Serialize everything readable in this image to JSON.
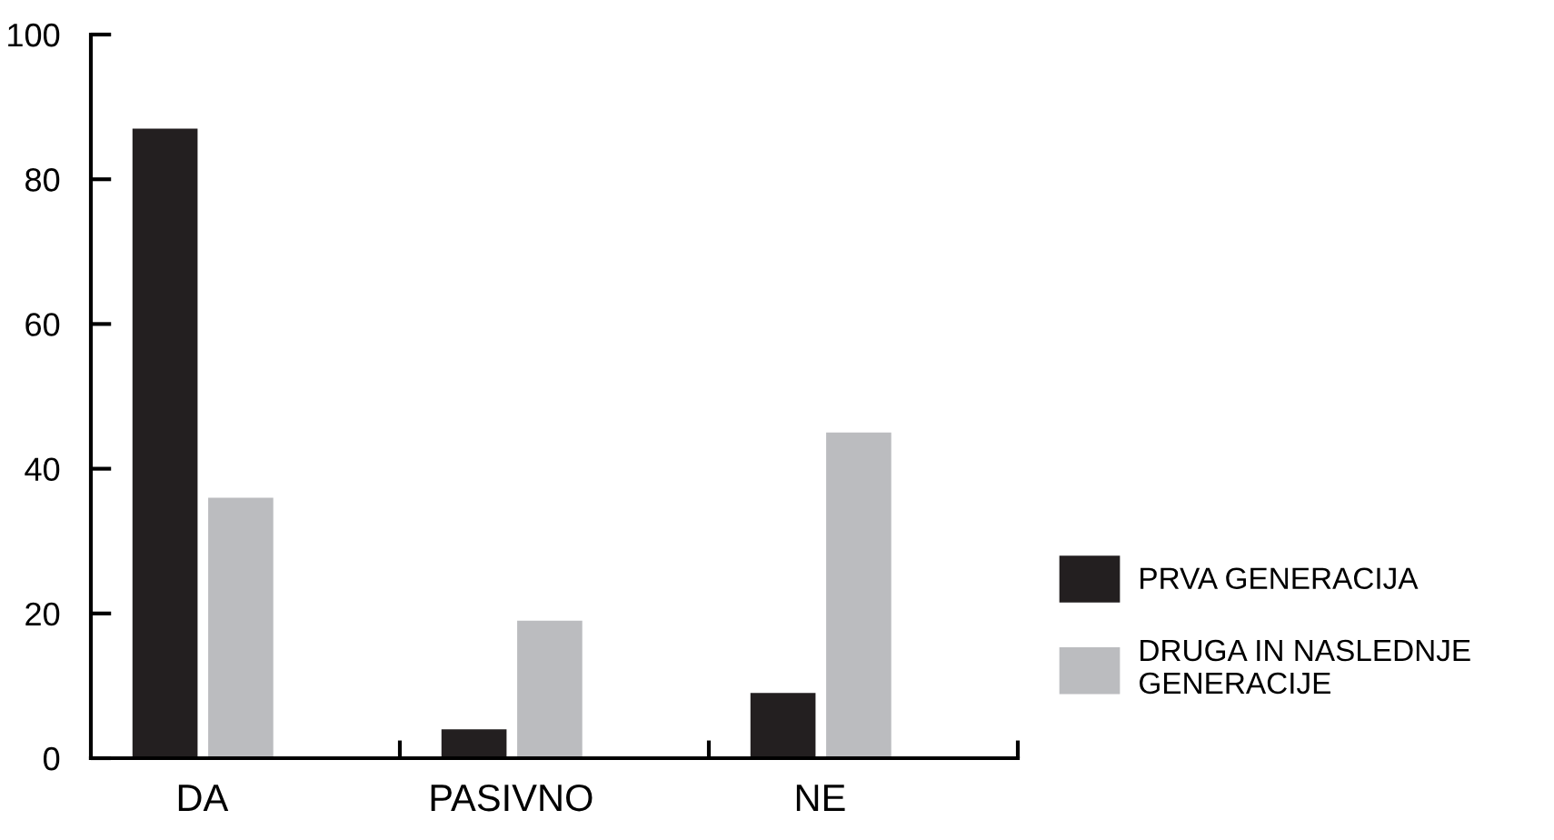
{
  "chart_data": {
    "type": "bar",
    "categories": [
      "DA",
      "PASIVNO",
      "NE"
    ],
    "series": [
      {
        "name": "PRVA GENERACIJA",
        "color": "#231f20",
        "values": [
          87,
          4,
          9
        ]
      },
      {
        "name": "DRUGA IN NASLEDNJE GENERACIJE",
        "color": "#bbbcbf",
        "values": [
          36,
          19,
          45
        ]
      }
    ],
    "ylim": [
      0,
      100
    ],
    "yticks": [
      0,
      20,
      40,
      60,
      80,
      100
    ],
    "grid": false,
    "legend": "right"
  }
}
